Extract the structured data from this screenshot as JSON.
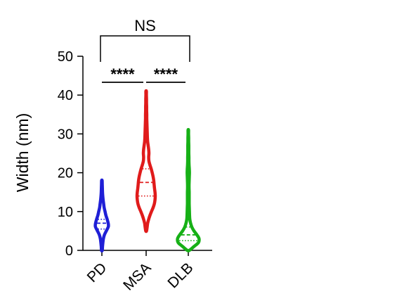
{
  "chart_data": {
    "type": "violin",
    "ylabel": "Width (nm)",
    "ylim": [
      0,
      50
    ],
    "yticks": [
      0,
      10,
      20,
      30,
      40,
      50
    ],
    "grid": false,
    "categories": [
      "PD",
      "MSA",
      "DLB"
    ],
    "series": [
      {
        "name": "PD",
        "color": "#1f1fd6",
        "min": 0,
        "max": 18,
        "q1": 5.5,
        "median": 7,
        "q3": 8,
        "profile": [
          [
            0,
            0.03
          ],
          [
            1,
            0.05
          ],
          [
            2,
            0.08
          ],
          [
            3,
            0.12
          ],
          [
            4,
            0.2
          ],
          [
            5,
            0.35
          ],
          [
            6,
            0.5
          ],
          [
            6.5,
            0.52
          ],
          [
            7,
            0.5
          ],
          [
            8,
            0.42
          ],
          [
            9,
            0.32
          ],
          [
            10,
            0.25
          ],
          [
            11,
            0.18
          ],
          [
            12,
            0.14
          ],
          [
            13,
            0.1
          ],
          [
            14,
            0.07
          ],
          [
            15,
            0.05
          ],
          [
            16,
            0.04
          ],
          [
            17,
            0.03
          ],
          [
            18,
            0.02
          ]
        ]
      },
      {
        "name": "MSA",
        "color": "#e01b1b",
        "min": 5,
        "max": 41,
        "q1": 14,
        "median": 17.5,
        "q3": 21,
        "profile": [
          [
            5,
            0.03
          ],
          [
            6,
            0.08
          ],
          [
            7,
            0.12
          ],
          [
            8,
            0.2
          ],
          [
            9,
            0.3
          ],
          [
            10,
            0.42
          ],
          [
            11,
            0.55
          ],
          [
            12,
            0.65
          ],
          [
            13,
            0.7
          ],
          [
            14,
            0.72
          ],
          [
            15,
            0.7
          ],
          [
            16,
            0.66
          ],
          [
            17,
            0.63
          ],
          [
            18,
            0.6
          ],
          [
            19,
            0.55
          ],
          [
            20,
            0.48
          ],
          [
            21,
            0.4
          ],
          [
            22,
            0.3
          ],
          [
            23,
            0.22
          ],
          [
            24,
            0.2
          ],
          [
            25,
            0.22
          ],
          [
            26,
            0.2
          ],
          [
            27,
            0.16
          ],
          [
            28,
            0.12
          ],
          [
            29,
            0.1
          ],
          [
            30,
            0.09
          ],
          [
            31,
            0.08
          ],
          [
            32,
            0.07
          ],
          [
            33,
            0.06
          ],
          [
            34,
            0.05
          ],
          [
            35,
            0.05
          ],
          [
            36,
            0.04
          ],
          [
            37,
            0.04
          ],
          [
            38,
            0.03
          ],
          [
            39,
            0.03
          ],
          [
            40,
            0.02
          ],
          [
            41,
            0.02
          ]
        ]
      },
      {
        "name": "DLB",
        "color": "#16b016",
        "min": 0,
        "max": 31,
        "q1": 2.5,
        "median": 4,
        "q3": 6,
        "profile": [
          [
            0,
            0.08
          ],
          [
            1,
            0.45
          ],
          [
            2,
            0.8
          ],
          [
            3,
            0.85
          ],
          [
            4,
            0.68
          ],
          [
            5,
            0.45
          ],
          [
            6,
            0.28
          ],
          [
            7,
            0.18
          ],
          [
            8,
            0.12
          ],
          [
            9,
            0.1
          ],
          [
            10,
            0.09
          ],
          [
            11,
            0.08
          ],
          [
            12,
            0.07
          ],
          [
            13,
            0.07
          ],
          [
            14,
            0.07
          ],
          [
            15,
            0.07
          ],
          [
            16,
            0.06
          ],
          [
            17,
            0.06
          ],
          [
            18,
            0.07
          ],
          [
            19,
            0.08
          ],
          [
            20,
            0.09
          ],
          [
            21,
            0.08
          ],
          [
            22,
            0.06
          ],
          [
            23,
            0.05
          ],
          [
            24,
            0.05
          ],
          [
            25,
            0.04
          ],
          [
            26,
            0.04
          ],
          [
            27,
            0.04
          ],
          [
            28,
            0.03
          ],
          [
            29,
            0.03
          ],
          [
            30,
            0.02
          ],
          [
            31,
            0.02
          ]
        ]
      }
    ],
    "annotations": [
      {
        "label": "****",
        "from": "PD",
        "to": "MSA",
        "bracket": false
      },
      {
        "label": "****",
        "from": "MSA",
        "to": "DLB",
        "bracket": false
      },
      {
        "label": "NS",
        "from": "PD",
        "to": "DLB",
        "bracket": true
      }
    ]
  }
}
